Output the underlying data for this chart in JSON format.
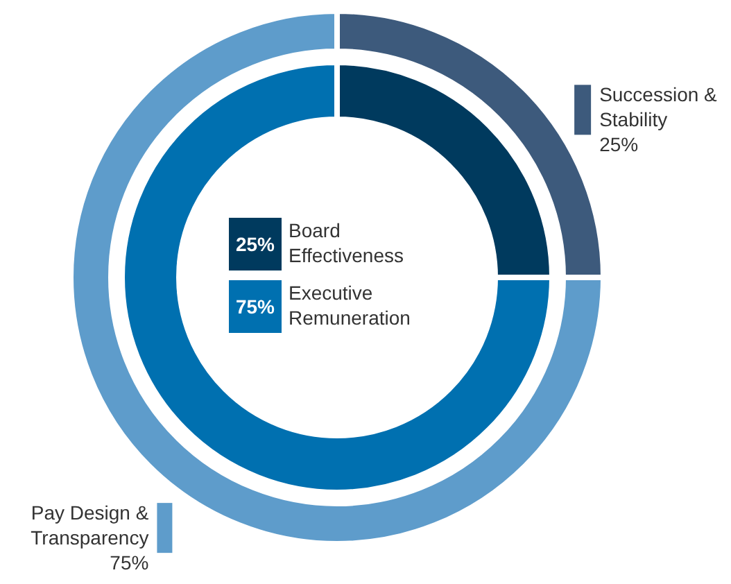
{
  "chart_data": [
    {
      "type": "donut",
      "categories": [
        "Succession & Stability",
        "Pay Design & Transparency"
      ],
      "values": [
        25,
        75
      ],
      "colors": [
        "#3d5a7c",
        "#5e9ccb"
      ],
      "value_labels": [
        "25%",
        "75%"
      ]
    },
    {
      "type": "donut",
      "categories": [
        "Board Effectiveness",
        "Executive Remuneration"
      ],
      "values": [
        25,
        75
      ],
      "colors": [
        "#003a5e",
        "#0070b0"
      ],
      "value_labels": [
        "25%",
        "75%"
      ]
    }
  ]
}
